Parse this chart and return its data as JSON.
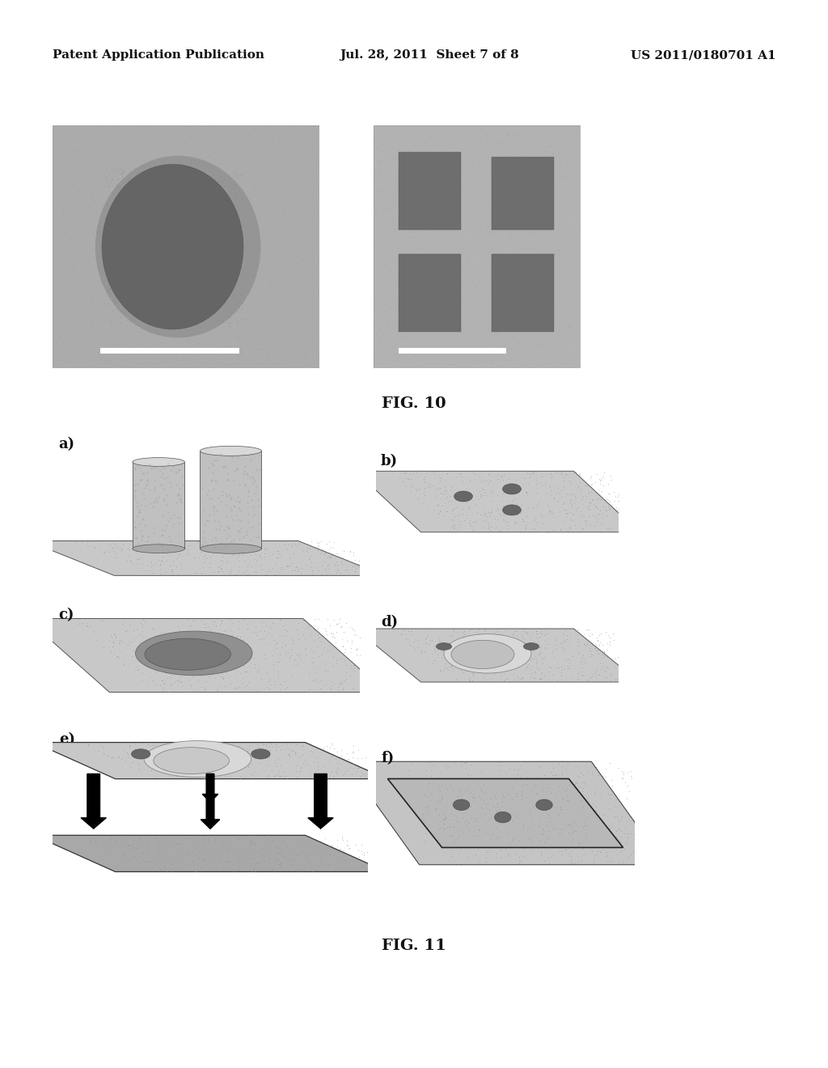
{
  "background_color": "#ffffff",
  "header_left": "Patent Application Publication",
  "header_mid": "Jul. 28, 2011  Sheet 7 of 8",
  "header_right": "US 2011/0180701 A1",
  "header_fontsize": 11,
  "fig10_label": "FIG. 10",
  "fig11_label": "FIG. 11",
  "fig10_label_fontsize": 14,
  "fig11_label_fontsize": 14,
  "sub_label_fontsize": 13
}
